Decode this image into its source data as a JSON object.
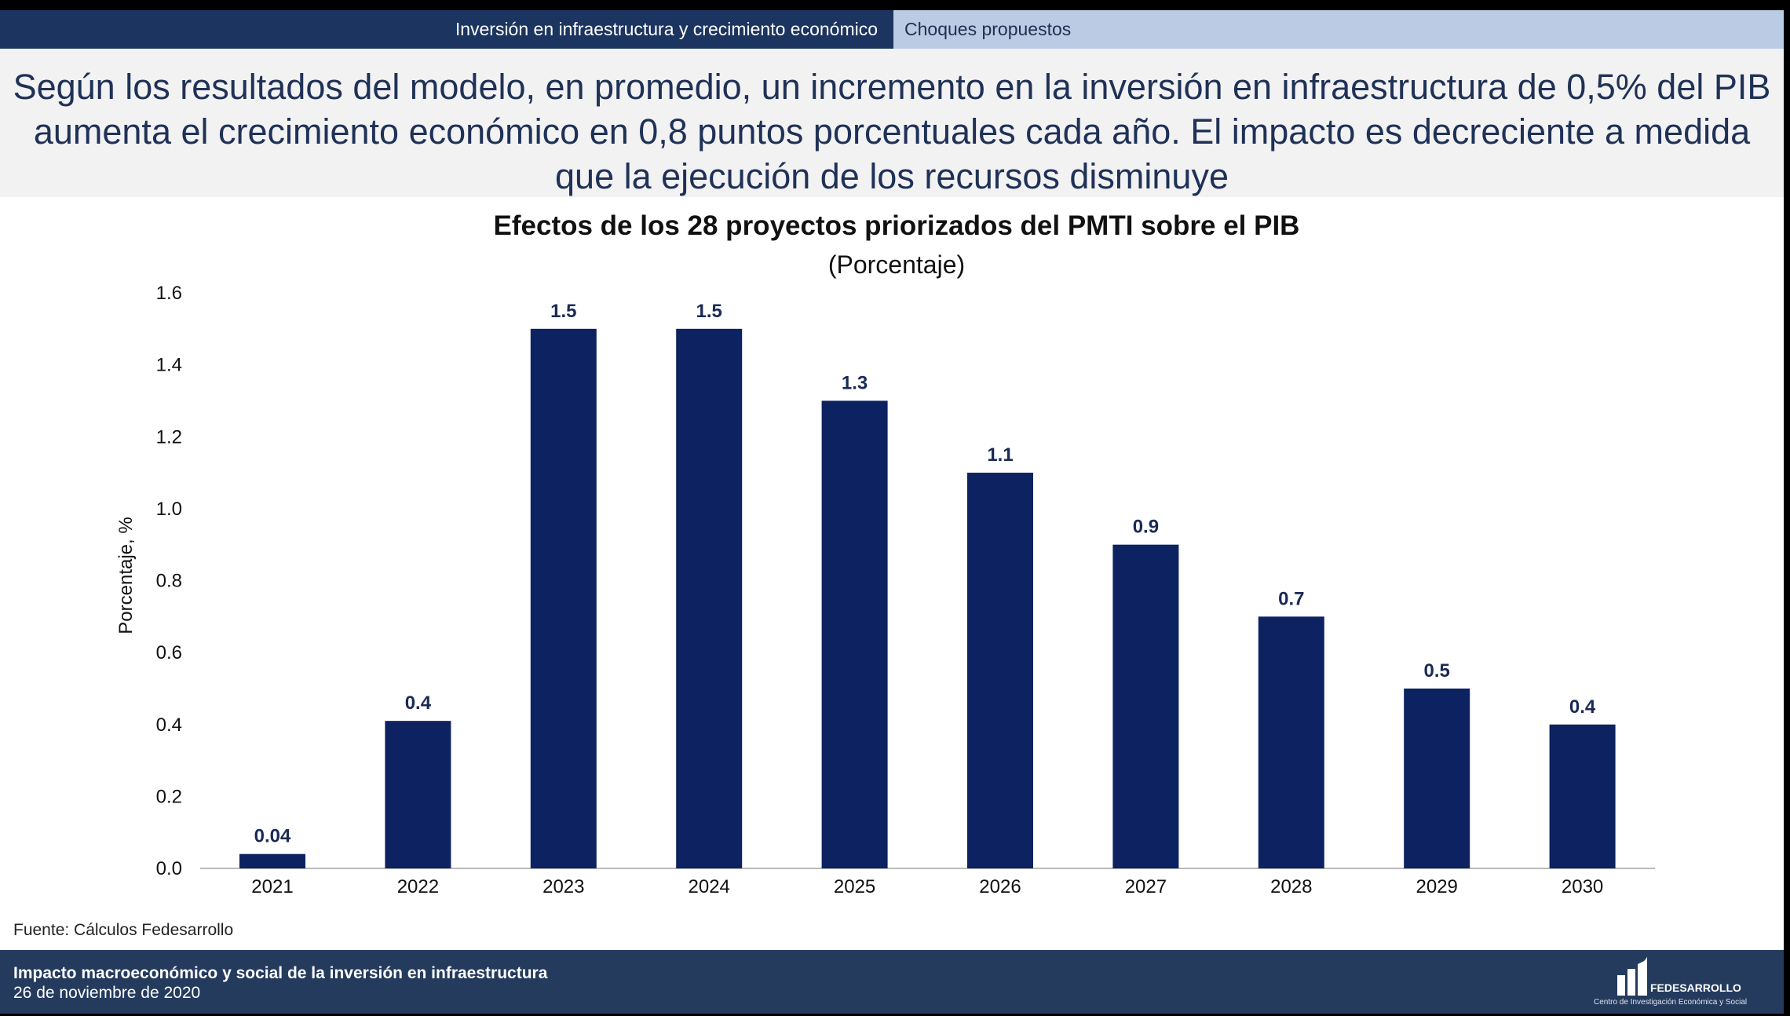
{
  "nav": {
    "active": "Inversión en infraestructura y crecimiento económico",
    "inactive": "Choques propuestos"
  },
  "headline": "Según los resultados del modelo, en promedio, un incremento en la inversión en infraestructura de 0,5% del PIB aumenta el crecimiento económico en 0,8 puntos porcentuales cada año. El impacto es decreciente a medida que la ejecución de los recursos disminuye",
  "chart_data": {
    "type": "bar",
    "title": "Efectos de los 28 proyectos priorizados del PMTI sobre el PIB",
    "subtitle": "(Porcentaje)",
    "xlabel": "",
    "ylabel": "Porcentaje, %",
    "ylim": [
      0,
      1.6
    ],
    "yticks": [
      "0.0",
      "0.2",
      "0.4",
      "0.6",
      "0.8",
      "1.0",
      "1.2",
      "1.4",
      "1.6"
    ],
    "grid": false,
    "categories": [
      "2021",
      "2022",
      "2023",
      "2024",
      "2025",
      "2026",
      "2027",
      "2028",
      "2029",
      "2030"
    ],
    "values": [
      0.04,
      0.41,
      1.5,
      1.5,
      1.3,
      1.1,
      0.9,
      0.7,
      0.5,
      0.4
    ],
    "labels": [
      "0.04",
      "0.4",
      "1.5",
      "1.5",
      "1.3",
      "1.1",
      "0.9",
      "0.7",
      "0.5",
      "0.4"
    ],
    "bar_color": "#0d2260"
  },
  "source": "Fuente: Cálculos Fedesarrollo",
  "footer": {
    "title": "Impacto macroeconómico y social de la inversión en infraestructura",
    "date": "26 de noviembre de 2020",
    "logo_text": "FEDESARROLLO",
    "logo_subtext": "Centro de Investigación Económica y Social"
  }
}
